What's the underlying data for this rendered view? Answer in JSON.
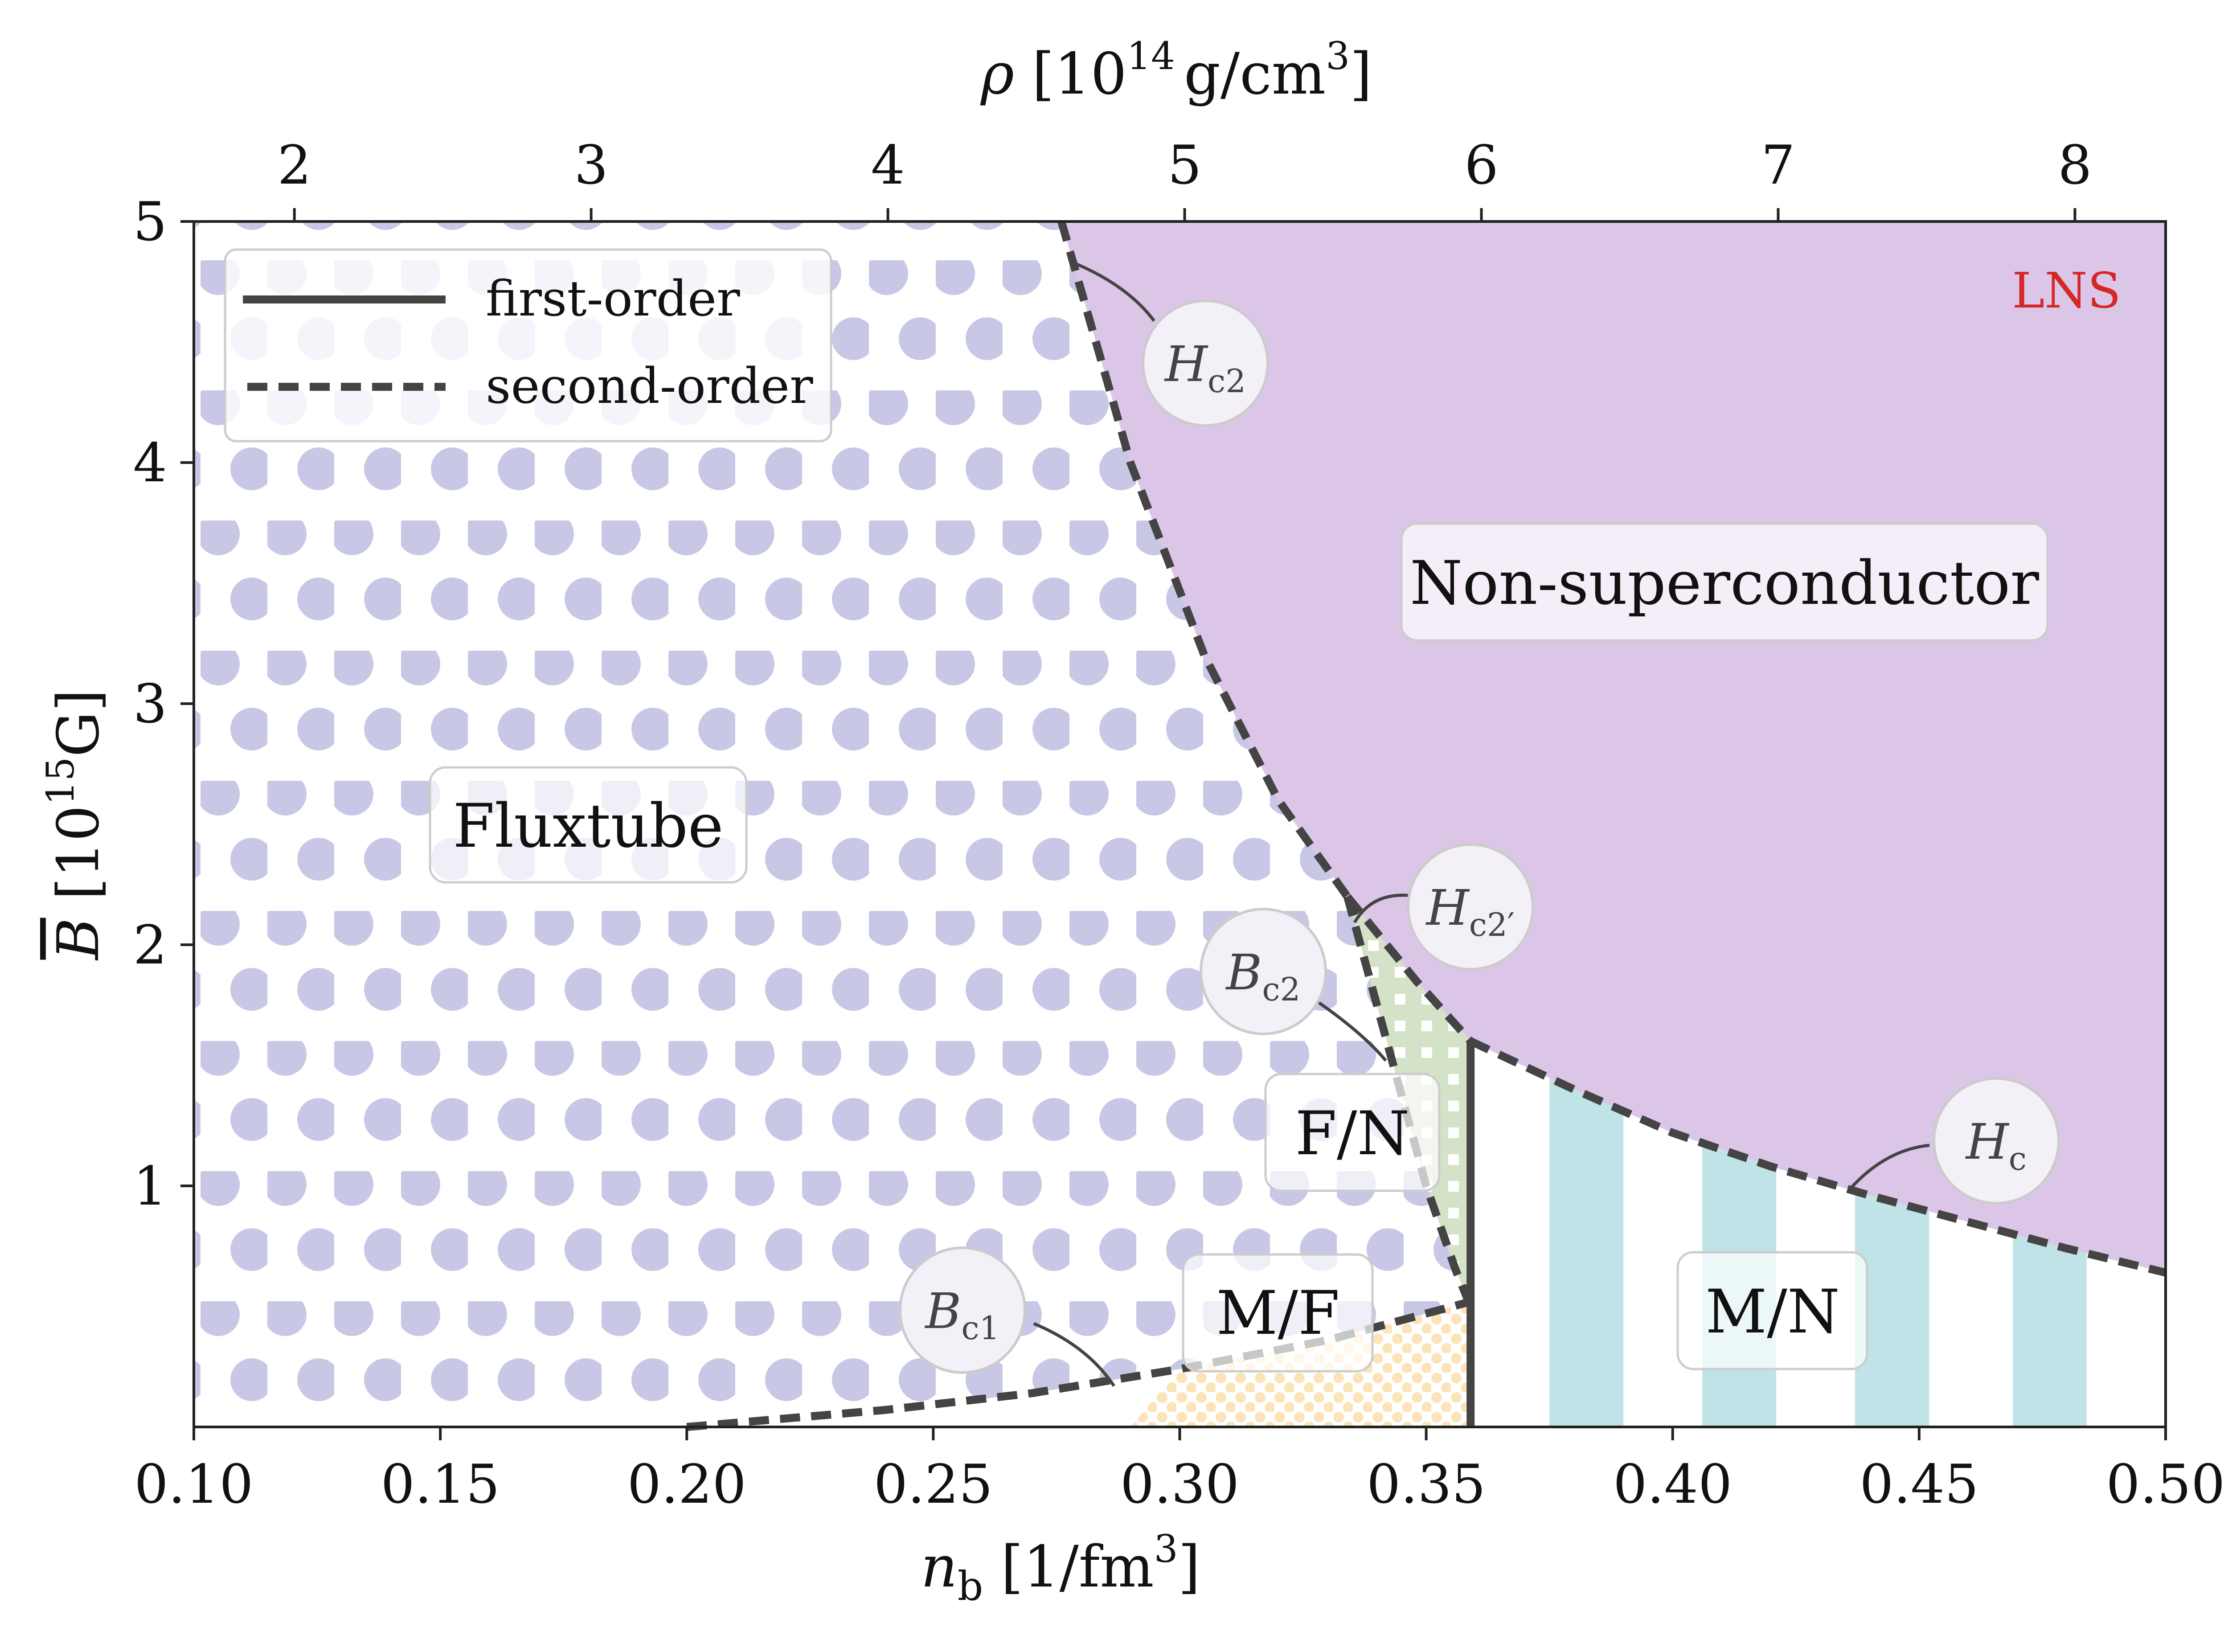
{
  "chart_data": {
    "type": "area",
    "xlabel": "n_b [1/fm^3]",
    "xlabel_main": "n",
    "xlabel_sub": "b",
    "xlabel_unit": "[1/fm",
    "xlabel_unit_exp": "3",
    "xlabel_unit_close": "]",
    "ylabel": "B̅ [10^15 G]",
    "ylabel_main": "B",
    "ylabel_unit": "[10",
    "ylabel_unit_exp": "15",
    "ylabel_unit_tail": "G]",
    "top_xlabel": "ρ [10^14 g/cm^3]",
    "top_xlabel_main": "ρ",
    "top_xlabel_unit": "[10",
    "top_xlabel_unit_exp": "14",
    "top_xlabel_unit_mid": "g/cm",
    "top_xlabel_unit_exp2": "3",
    "top_xlabel_unit_close": "]",
    "xlim": [
      0.1,
      0.5
    ],
    "ylim": [
      0.0,
      5.0
    ],
    "x_ticks": [
      "0.10",
      "0.15",
      "0.20",
      "0.25",
      "0.30",
      "0.35",
      "0.40",
      "0.45",
      "0.50"
    ],
    "y_ticks": [
      "1",
      "2",
      "3",
      "4",
      "5"
    ],
    "top_ticks": [
      "2",
      "3",
      "4",
      "5",
      "6",
      "7",
      "8"
    ],
    "top_tick_positions_nb": [
      0.1204,
      0.1806,
      0.2408,
      0.301,
      0.3612,
      0.4214,
      0.4816
    ],
    "annotation_corner": "LNS",
    "legend": {
      "placement": "top-left",
      "entries": [
        {
          "label": "first-order",
          "style": "solid"
        },
        {
          "label": "second-order",
          "style": "dashed"
        }
      ]
    },
    "regions": [
      {
        "name": "Fluxtube",
        "color": "#c8c8e6"
      },
      {
        "name": "Non-superconductor",
        "color": "#dcc6e8"
      },
      {
        "name": "F/N",
        "color": "#d4e2c8"
      },
      {
        "name": "M/F",
        "color": "#fde4b8"
      },
      {
        "name": "M/N",
        "color": "#bfe3e6"
      }
    ],
    "curves": [
      {
        "name": "H_c2",
        "order": "second",
        "x": [
          0.276,
          0.29,
          0.305,
          0.32,
          0.334
        ],
        "y": [
          5.0,
          4.0,
          3.2,
          2.6,
          2.2
        ]
      },
      {
        "name": "H_c2'",
        "order": "second",
        "x": [
          0.334,
          0.348,
          0.359
        ],
        "y": [
          2.2,
          1.85,
          1.6
        ]
      },
      {
        "name": "H_c",
        "order": "second",
        "x": [
          0.359,
          0.38,
          0.4,
          0.42,
          0.44,
          0.46,
          0.48,
          0.5
        ],
        "y": [
          1.6,
          1.4,
          1.22,
          1.08,
          0.96,
          0.85,
          0.74,
          0.64
        ]
      },
      {
        "name": "B_c2",
        "order": "second",
        "x": [
          0.334,
          0.342,
          0.35,
          0.356,
          0.359
        ],
        "y": [
          2.2,
          1.6,
          1.0,
          0.65,
          0.5
        ]
      },
      {
        "name": "B_c1",
        "order": "second",
        "x": [
          0.2,
          0.24,
          0.27,
          0.3,
          0.33,
          0.359
        ],
        "y": [
          0.0,
          0.07,
          0.14,
          0.24,
          0.36,
          0.52
        ]
      },
      {
        "name": "first-order boundary",
        "order": "first",
        "x": [
          0.359,
          0.359
        ],
        "y": [
          0.0,
          1.6
        ]
      }
    ],
    "region_labels": [
      "Fluxtube",
      "Non-superconductor",
      "F/N",
      "M/F",
      "M/N"
    ],
    "curve_labels": [
      {
        "main": "H",
        "sub": "c2"
      },
      {
        "main": "H",
        "sub": "c2′"
      },
      {
        "main": "B",
        "sub": "c2"
      },
      {
        "main": "H",
        "sub": "c"
      },
      {
        "main": "B",
        "sub": "c1"
      }
    ]
  }
}
